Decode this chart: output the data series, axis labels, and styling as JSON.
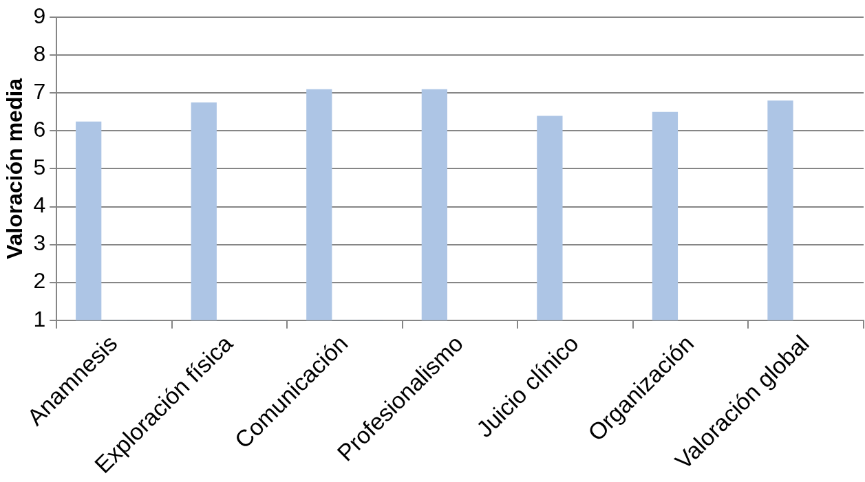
{
  "chart_data": {
    "type": "bar",
    "ylabel": "Valoración media",
    "categories": [
      "Anamnesis",
      "Exploración física",
      "Comunicación",
      "Profesionalismo",
      "Juicio clínico",
      "Organización",
      "Valoración global"
    ],
    "series": [
      {
        "color": "#adc5e5",
        "values": [
          6.25,
          6.75,
          7.1,
          7.1,
          6.4,
          6.5,
          6.8
        ]
      },
      {
        "color": "#5b95d6",
        "values": [
          1,
          1,
          1,
          null,
          null,
          null,
          null
        ]
      },
      {
        "color": "#4a7ebb",
        "values": [
          1,
          1,
          1,
          null,
          null,
          null,
          null
        ]
      }
    ],
    "ylim": [
      1,
      9
    ],
    "yticks": [
      1,
      2,
      3,
      4,
      5,
      6,
      7,
      8,
      9
    ],
    "grid": "y",
    "legend": false
  }
}
